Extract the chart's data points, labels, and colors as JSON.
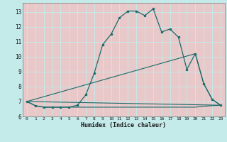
{
  "xlabel": "Humidex (Indice chaleur)",
  "xlim": [
    -0.5,
    23.5
  ],
  "ylim": [
    6.0,
    13.6
  ],
  "yticks": [
    6,
    7,
    8,
    9,
    10,
    11,
    12,
    13
  ],
  "xticks": [
    0,
    1,
    2,
    3,
    4,
    5,
    6,
    7,
    8,
    9,
    10,
    11,
    12,
    13,
    14,
    15,
    16,
    17,
    18,
    19,
    20,
    21,
    22,
    23
  ],
  "bg_color": "#c5eaea",
  "grid_bg_color": "#e8c8c8",
  "grid_color": "#c5eaea",
  "line_color": "#1a6b6b",
  "line1_x": [
    0,
    1,
    2,
    3,
    4,
    5,
    6,
    7,
    8,
    9,
    10,
    11,
    12,
    13,
    14,
    15,
    16,
    17,
    18,
    19,
    20,
    21,
    22,
    23
  ],
  "line1_y": [
    7.0,
    6.72,
    6.62,
    6.62,
    6.62,
    6.62,
    6.75,
    7.45,
    8.9,
    10.8,
    11.5,
    12.6,
    13.05,
    13.05,
    12.75,
    13.2,
    11.65,
    11.85,
    11.3,
    9.15,
    10.2,
    8.2,
    7.15,
    6.75
  ],
  "line2_x": [
    0,
    23
  ],
  "line2_y": [
    7.0,
    6.75
  ],
  "line2b_x": [
    0,
    20,
    21,
    22,
    23
  ],
  "line2b_y": [
    7.0,
    10.2,
    8.2,
    7.15,
    6.75
  ],
  "line3_x": [
    0,
    1,
    2,
    3,
    4,
    5,
    6,
    7,
    8,
    9,
    10,
    11,
    12,
    13,
    14,
    15,
    16,
    17,
    18,
    19,
    20,
    21,
    22,
    23
  ],
  "line3_y": [
    7.0,
    6.72,
    6.62,
    6.62,
    6.62,
    6.62,
    6.62,
    6.62,
    6.62,
    6.62,
    6.62,
    6.62,
    6.62,
    6.62,
    6.62,
    6.62,
    6.62,
    6.62,
    6.62,
    6.62,
    6.62,
    6.68,
    6.72,
    6.75
  ]
}
